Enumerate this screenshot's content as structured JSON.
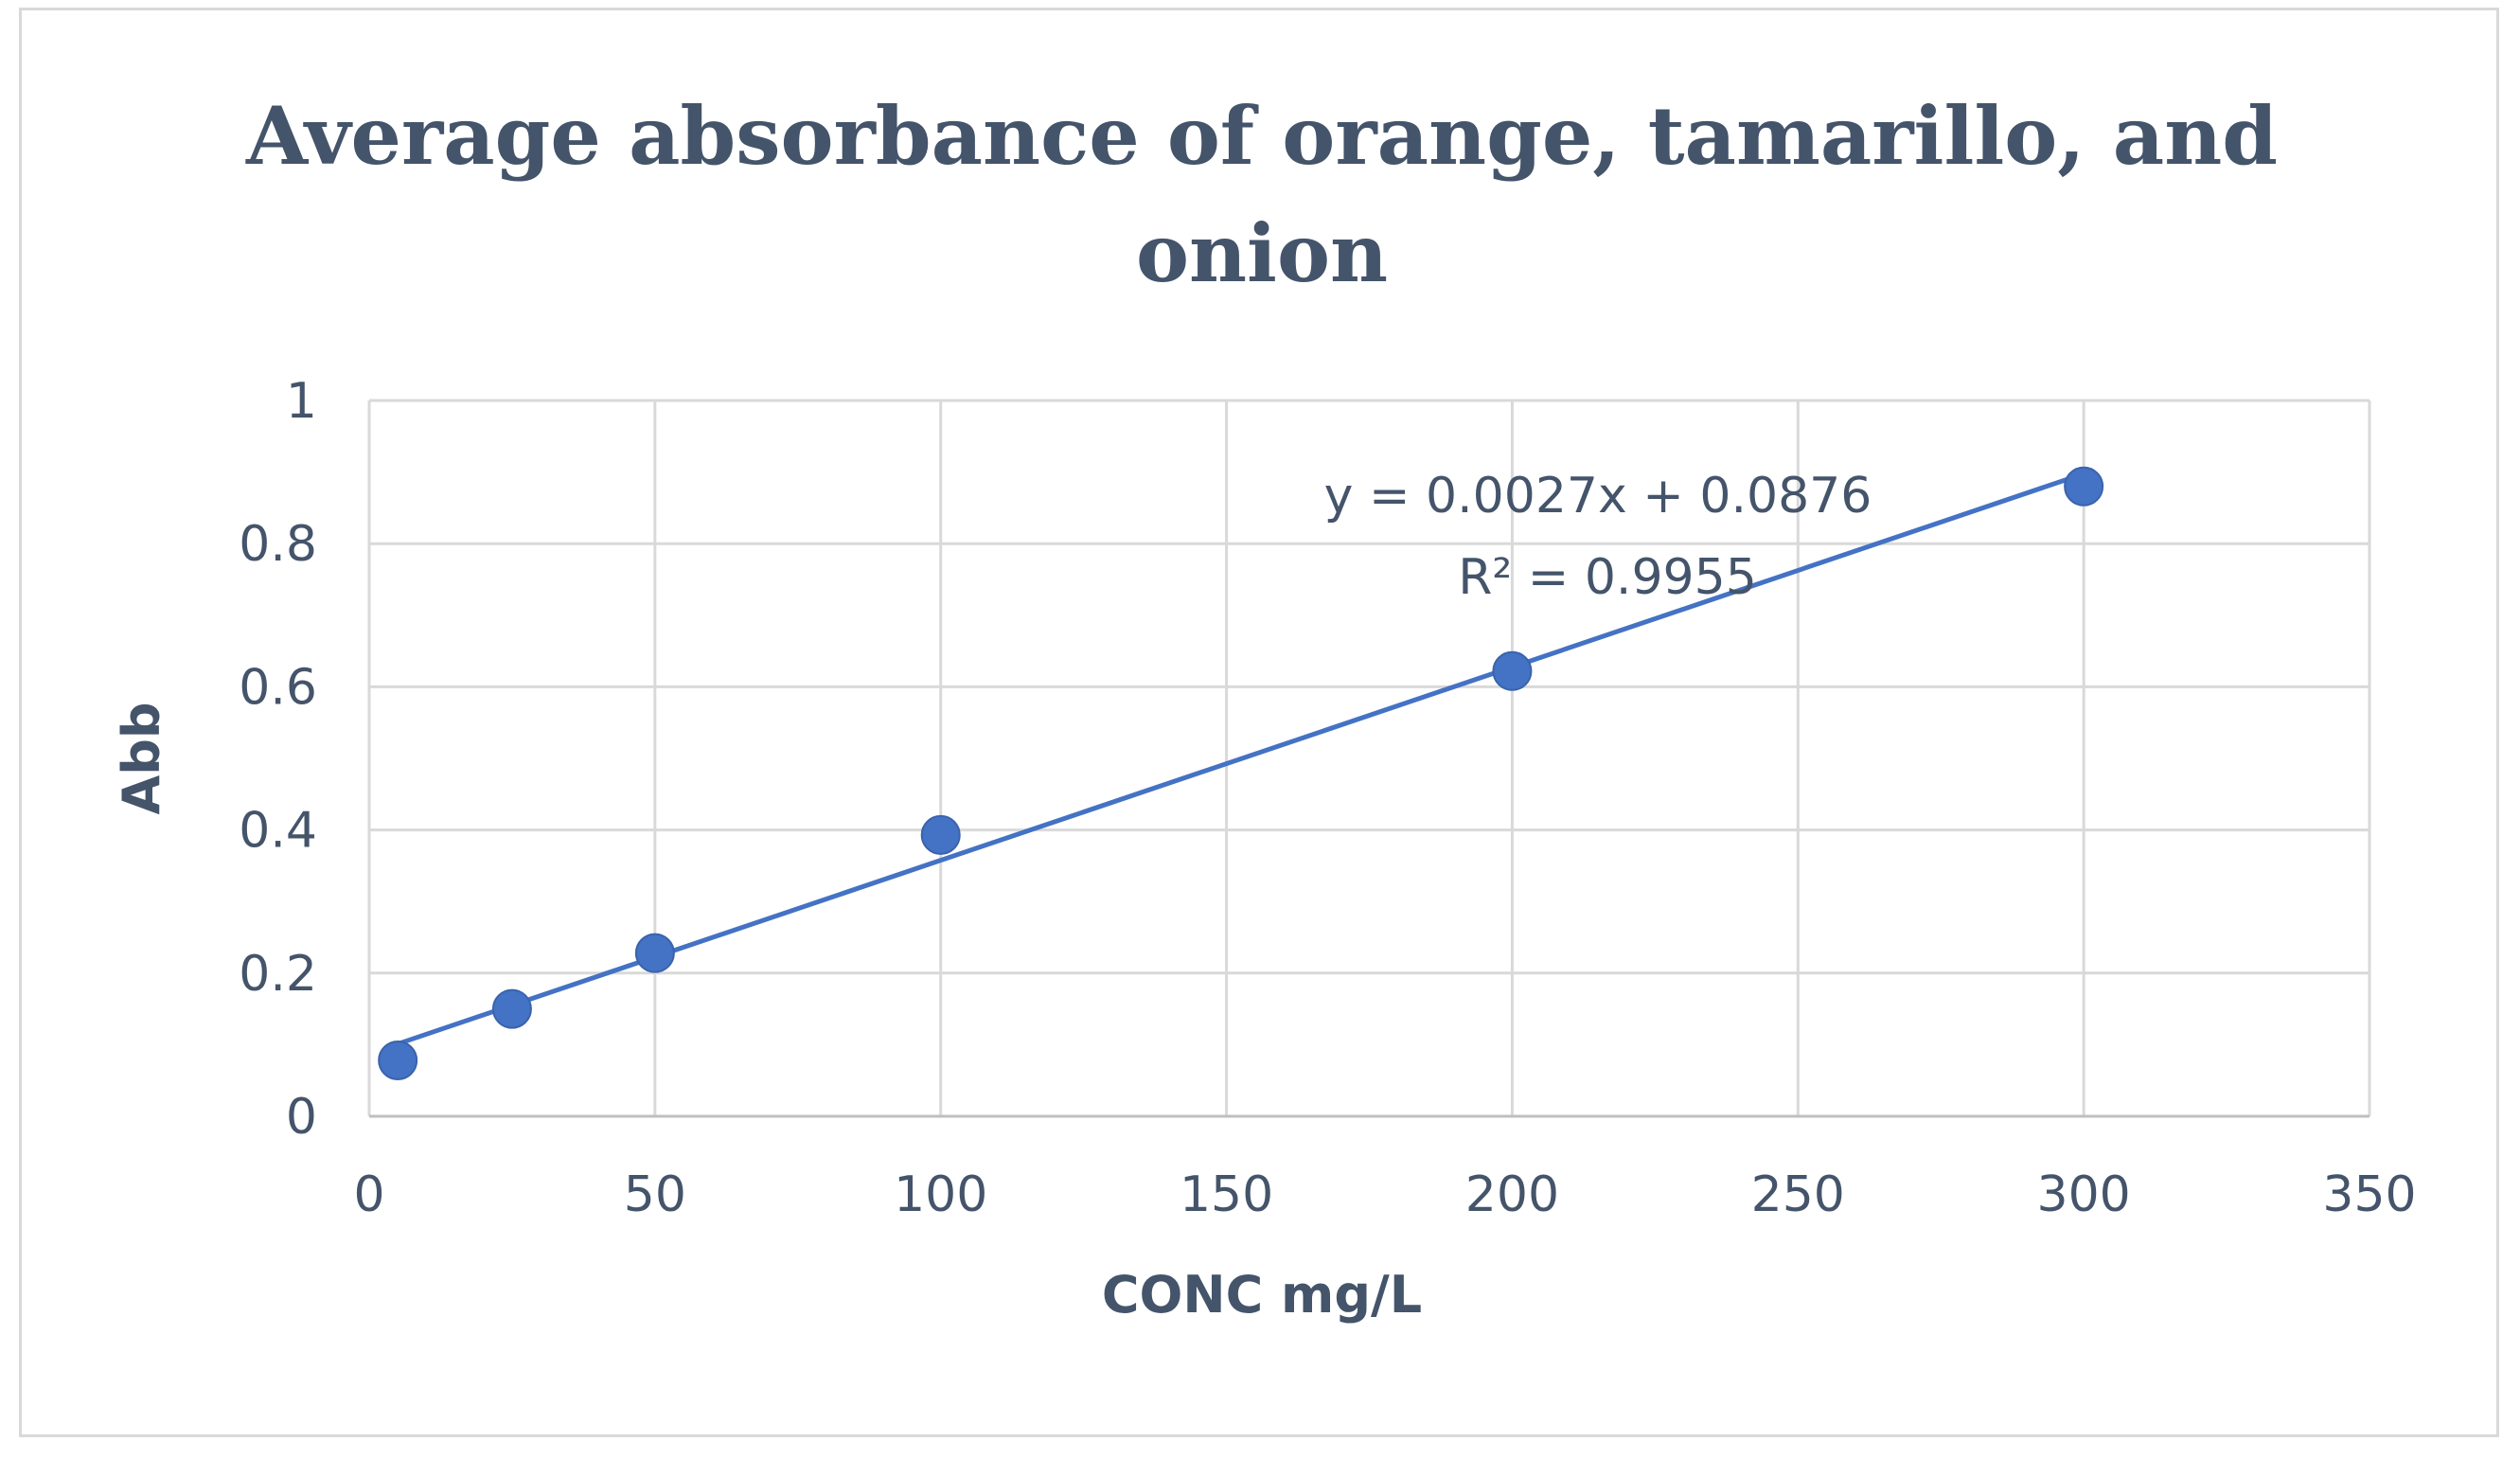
{
  "chart_data": {
    "type": "scatter",
    "title_lines": [
      "Average absorbance of orange, tamarillo, and",
      "onion"
    ],
    "xlabel": "CONC  mg/L",
    "ylabel": "Abb",
    "xlim": [
      0,
      350
    ],
    "ylim": [
      0,
      1
    ],
    "xticks": [
      "0",
      "50",
      "100",
      "150",
      "200",
      "250",
      "300",
      "350"
    ],
    "yticks": [
      "0",
      "0.2",
      "0.4",
      "0.6",
      "0.8",
      "1"
    ],
    "grid": true,
    "legend": "none",
    "series": [
      {
        "x": [
          5,
          25,
          50,
          100,
          200,
          300
        ],
        "y": [
          0.078,
          0.15,
          0.228,
          0.393,
          0.622,
          0.88
        ],
        "color": "#4472c4"
      }
    ],
    "trendline": {
      "type": "linear",
      "slope": 0.0027,
      "intercept": 0.0876,
      "x_range": [
        5,
        300
      ],
      "color": "#4472c4"
    },
    "annotations": {
      "equation": "y = 0.0027x + 0.0876",
      "r_squared": "R² = 0.9955"
    },
    "colors": {
      "grid": "#d9d9d9",
      "text": "#44546a",
      "marker": "#4472c4"
    }
  }
}
